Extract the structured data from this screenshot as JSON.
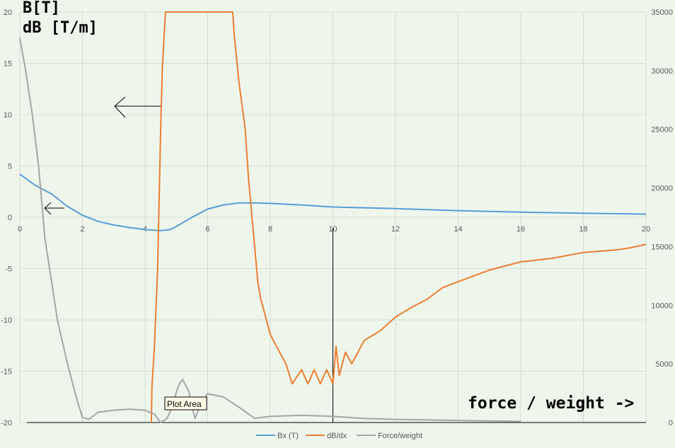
{
  "chart_data": {
    "type": "line",
    "title": "",
    "y_left_label_line1": "B[T]",
    "y_left_label_line2": "dB [T/m]",
    "annotation": "force / weight ->",
    "tooltip": "Plot Area",
    "xlim": [
      0,
      20
    ],
    "ylim_left": [
      -20,
      20
    ],
    "ylim_right": [
      0,
      35000
    ],
    "x_ticks": [
      "0",
      "2",
      "4",
      "6",
      "8",
      "10",
      "12",
      "14",
      "16",
      "18",
      "20"
    ],
    "y_left_ticks": [
      "20",
      "15",
      "10",
      "5",
      "0",
      "-5",
      "-10",
      "-15",
      "-20"
    ],
    "y_right_ticks": [
      "35000",
      "30000",
      "25000",
      "20000",
      "15000",
      "10000",
      "5000",
      "0"
    ],
    "grid": true,
    "legend_position": "bottom",
    "vertical_marker_x": 10,
    "series": [
      {
        "name": "Bx (T)",
        "axis": "left",
        "color": "#5b9bd5",
        "points": [
          [
            0,
            4.2
          ],
          [
            0.5,
            3.1
          ],
          [
            1,
            2.3
          ],
          [
            1.5,
            1.1
          ],
          [
            2,
            0.2
          ],
          [
            2.5,
            -0.4
          ],
          [
            3,
            -0.75
          ],
          [
            3.5,
            -1.0
          ],
          [
            4,
            -1.2
          ],
          [
            4.5,
            -1.3
          ],
          [
            4.8,
            -1.2
          ],
          [
            5,
            -0.9
          ],
          [
            5.5,
            0
          ],
          [
            6,
            0.8
          ],
          [
            6.5,
            1.2
          ],
          [
            7,
            1.4
          ],
          [
            7.5,
            1.4
          ],
          [
            8,
            1.35
          ],
          [
            9,
            1.2
          ],
          [
            10,
            1.0
          ],
          [
            12,
            0.85
          ],
          [
            14,
            0.65
          ],
          [
            16,
            0.5
          ],
          [
            18,
            0.4
          ],
          [
            20,
            0.3
          ]
        ]
      },
      {
        "name": "dB/dx",
        "axis": "right",
        "color": "#ed7d31",
        "points": [
          [
            4.2,
            0
          ],
          [
            4.22,
            3000
          ],
          [
            4.3,
            6500
          ],
          [
            4.4,
            13000
          ],
          [
            4.45,
            19000
          ],
          [
            4.5,
            25000
          ],
          [
            4.55,
            30000
          ],
          [
            4.6,
            32500
          ],
          [
            4.65,
            35000
          ],
          [
            6.8,
            35000
          ],
          [
            6.85,
            33000
          ],
          [
            7,
            29000
          ],
          [
            7.2,
            25000
          ],
          [
            7.3,
            21000
          ],
          [
            7.4,
            18000
          ],
          [
            7.5,
            15000
          ],
          [
            7.6,
            12000
          ],
          [
            7.7,
            10500
          ],
          [
            7.8,
            9500
          ],
          [
            8,
            7500
          ],
          [
            8.2,
            6500
          ],
          [
            8.5,
            5000
          ],
          [
            8.7,
            3300
          ],
          [
            9,
            4500
          ],
          [
            9.2,
            3300
          ],
          [
            9.4,
            4500
          ],
          [
            9.6,
            3300
          ],
          [
            9.8,
            4500
          ],
          [
            10,
            3300
          ],
          [
            10.1,
            6500
          ],
          [
            10.2,
            4000
          ],
          [
            10.4,
            6000
          ],
          [
            10.6,
            5000
          ],
          [
            11,
            7000
          ],
          [
            11.5,
            7800
          ],
          [
            12,
            9000
          ],
          [
            12.5,
            9800
          ],
          [
            13,
            10500
          ],
          [
            13.5,
            11500
          ],
          [
            14,
            12000
          ],
          [
            15,
            13000
          ],
          [
            16,
            13700
          ],
          [
            17,
            14000
          ],
          [
            18,
            14500
          ],
          [
            19,
            14700
          ],
          [
            19.5,
            14900
          ],
          [
            20,
            15200
          ]
        ]
      },
      {
        "name": "Force/weight",
        "axis": "left",
        "color": "#a5a5a5",
        "points": [
          [
            0,
            17.5
          ],
          [
            0.2,
            14
          ],
          [
            0.4,
            10
          ],
          [
            0.6,
            5
          ],
          [
            0.8,
            -2
          ],
          [
            1,
            -6
          ],
          [
            1.2,
            -10
          ],
          [
            1.5,
            -14
          ],
          [
            1.8,
            -17.5
          ],
          [
            2,
            -19.5
          ],
          [
            2.2,
            -19.7
          ],
          [
            2.5,
            -19
          ],
          [
            3,
            -18.8
          ],
          [
            3.5,
            -18.7
          ],
          [
            4,
            -18.8
          ],
          [
            4.3,
            -19.2
          ],
          [
            4.5,
            -20
          ],
          [
            4.7,
            -19.6
          ],
          [
            4.9,
            -18.3
          ],
          [
            5,
            -17
          ],
          [
            5.1,
            -16.2
          ],
          [
            5.2,
            -15.8
          ],
          [
            5.4,
            -17
          ],
          [
            5.5,
            -18.5
          ],
          [
            5.6,
            -19.6
          ],
          [
            5.8,
            -18
          ],
          [
            6,
            -17.2
          ],
          [
            6.5,
            -17.5
          ],
          [
            7,
            -18.5
          ],
          [
            7.5,
            -19.6
          ],
          [
            8,
            -19.4
          ],
          [
            9,
            -19.3
          ],
          [
            10,
            -19.4
          ],
          [
            11,
            -19.6
          ],
          [
            12,
            -19.7
          ],
          [
            14,
            -19.8
          ],
          [
            16,
            -19.9
          ]
        ]
      }
    ]
  }
}
